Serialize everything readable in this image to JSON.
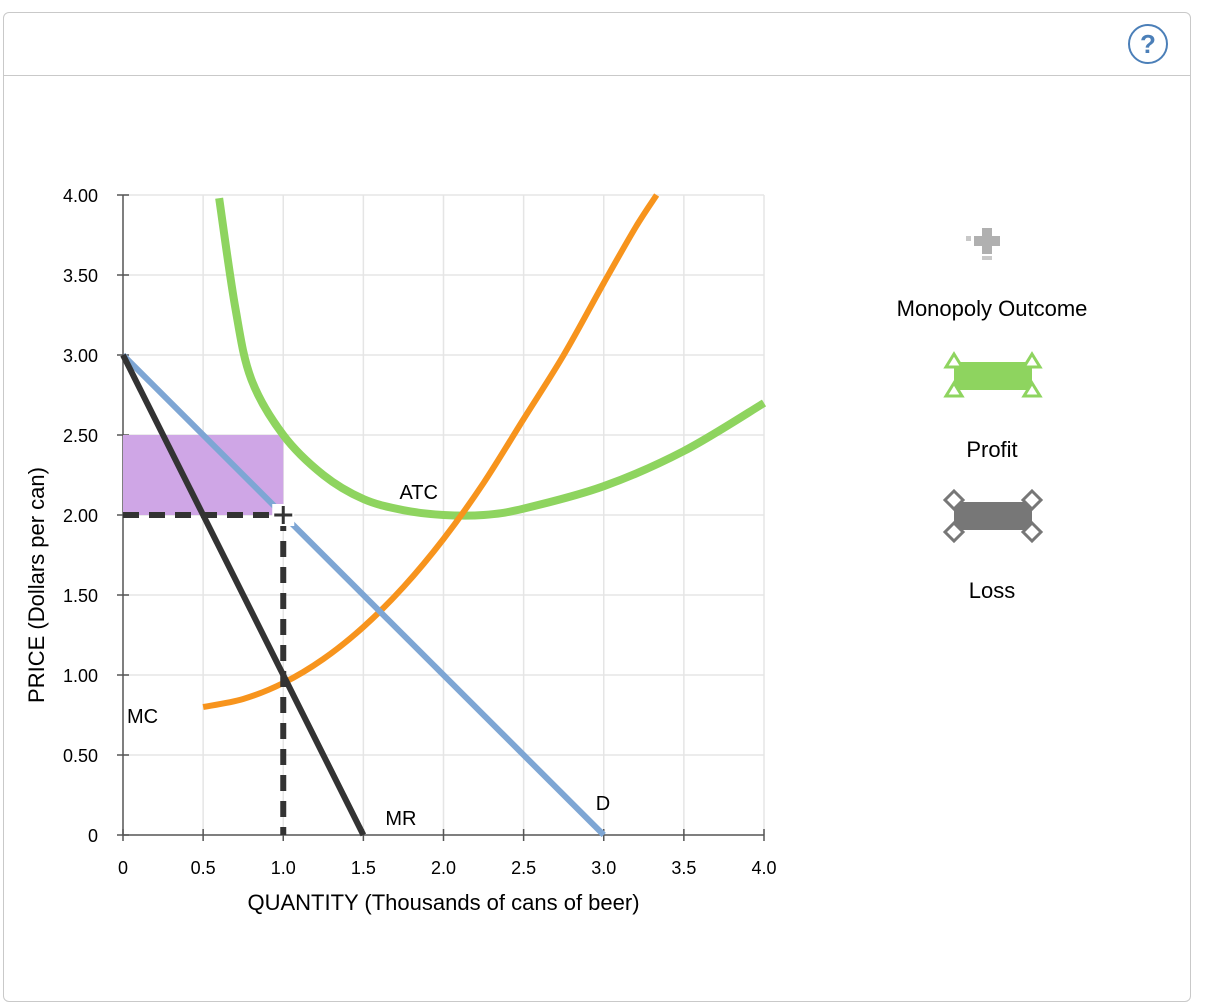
{
  "help_symbol": "?",
  "colors": {
    "atc": "#8ed45f",
    "mc": "#f7941d",
    "demand": "#7ea6d4",
    "mr": "#333333",
    "profit_fill": "#cfa6e6",
    "dashed": "#333333",
    "grid": "#e5e5e5",
    "legend_profit": "#8ed45f",
    "legend_loss": "#777777",
    "legend_point": "#b0b0b0",
    "help": "#4b7fb8"
  },
  "chart_data": {
    "type": "line",
    "xlabel": "QUANTITY (Thousands of cans of beer)",
    "ylabel": "PRICE (Dollars per can)",
    "xlim": [
      0,
      4
    ],
    "ylim": [
      0,
      4
    ],
    "x_ticks": [
      "0",
      "0.5",
      "1.0",
      "1.5",
      "2.0",
      "2.5",
      "3.0",
      "3.5",
      "4.0"
    ],
    "y_ticks": [
      "0",
      "0.50",
      "1.00",
      "1.50",
      "2.00",
      "2.50",
      "3.00",
      "3.50",
      "4.00"
    ],
    "grid": true,
    "series": [
      {
        "name": "ATC",
        "points": [
          [
            0.6,
            3.98
          ],
          [
            0.7,
            3.3
          ],
          [
            0.8,
            2.85
          ],
          [
            1.0,
            2.5
          ],
          [
            1.25,
            2.25
          ],
          [
            1.5,
            2.1
          ],
          [
            1.75,
            2.03
          ],
          [
            2.0,
            2.0
          ],
          [
            2.25,
            2.0
          ],
          [
            2.5,
            2.04
          ],
          [
            3.0,
            2.18
          ],
          [
            3.5,
            2.4
          ],
          [
            4.0,
            2.7
          ]
        ]
      },
      {
        "name": "MC",
        "points": [
          [
            0.5,
            0.8
          ],
          [
            0.75,
            0.85
          ],
          [
            1.0,
            0.95
          ],
          [
            1.25,
            1.1
          ],
          [
            1.5,
            1.3
          ],
          [
            1.75,
            1.55
          ],
          [
            2.0,
            1.85
          ],
          [
            2.25,
            2.2
          ],
          [
            2.5,
            2.6
          ],
          [
            2.75,
            3.0
          ],
          [
            3.0,
            3.45
          ],
          [
            3.2,
            3.8
          ],
          [
            3.33,
            4.0
          ]
        ]
      },
      {
        "name": "D",
        "points": [
          [
            0,
            3.0
          ],
          [
            3.0,
            0
          ]
        ]
      },
      {
        "name": "MR",
        "points": [
          [
            0,
            3.0
          ],
          [
            1.5,
            0
          ]
        ]
      }
    ],
    "monopoly_outcome": {
      "quantity": 1.0,
      "price": 2.0
    },
    "profit_area": {
      "x": [
        0,
        1.0
      ],
      "y": [
        2.0,
        2.5
      ]
    }
  },
  "legend": {
    "monopoly_outcome": "Monopoly Outcome",
    "profit": "Profit",
    "loss": "Loss"
  }
}
